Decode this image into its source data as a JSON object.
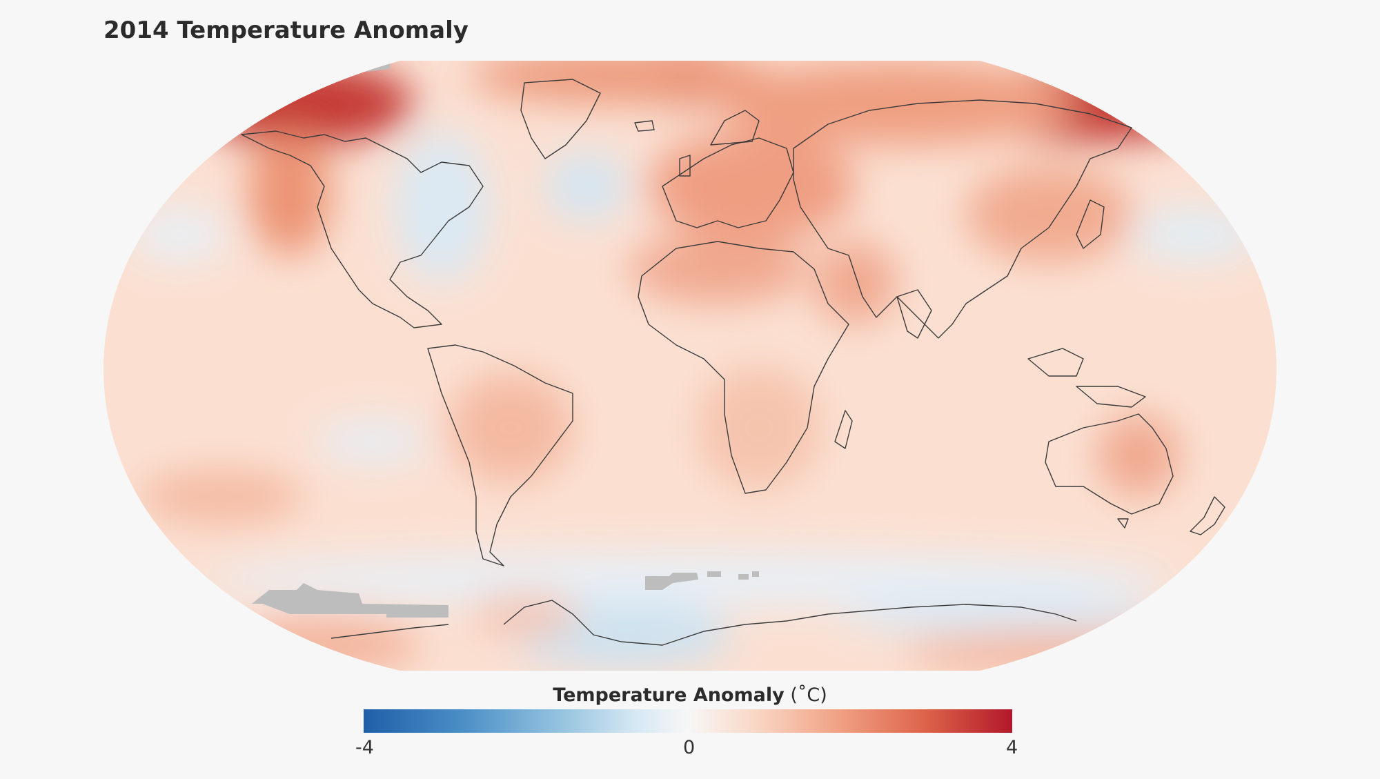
{
  "title": "2014 Temperature Anomaly",
  "legend": {
    "title_bold": "Temperature Anomaly",
    "unit": "(˚C)",
    "min_label": "-4",
    "mid_label": "0",
    "max_label": "4",
    "range": [
      -4,
      4
    ],
    "colors": {
      "cold_end": "#1f5fa8",
      "neutral": "#f7f7f7",
      "warm_end": "#b2182b",
      "no_data": "#bdbdbd"
    }
  },
  "map": {
    "projection": "Robinson",
    "region": "World",
    "year": 2014
  }
}
